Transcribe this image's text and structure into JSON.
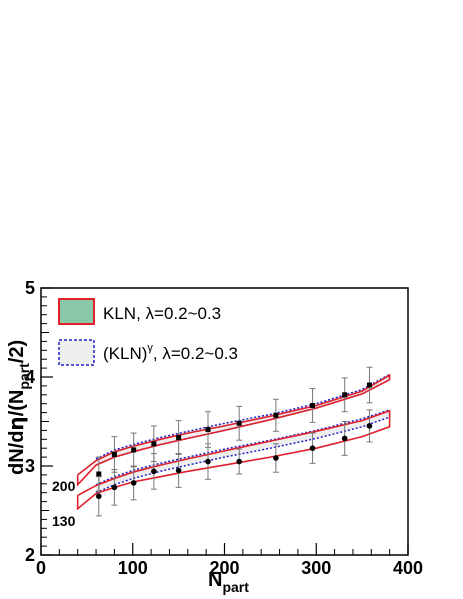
{
  "chart_data": {
    "type": "line",
    "xlabel": "N",
    "xlabel_sub": "part",
    "ylabel_parts": [
      "dN/d",
      "η",
      "/(N",
      "part",
      "/2)"
    ],
    "xlim": [
      0,
      400
    ],
    "ylim": [
      2,
      5
    ],
    "x_ticks": [
      "0",
      "100",
      "200",
      "300",
      "400"
    ],
    "y_ticks": [
      "2",
      "3",
      "4",
      "5"
    ],
    "grid": false,
    "legend_position": "top-left",
    "legend": [
      {
        "text": "KLN, λ=0.2~0.3",
        "style": "filled-band",
        "fill": "#88c8a8",
        "edge": "#e0202a"
      },
      {
        "text_main": "(KLN)",
        "text_sup": "γ",
        "text_tail": ", λ=0.2~0.3",
        "style": "dotted-band",
        "fill": "#eeeeee",
        "edge": "#2020cc"
      }
    ],
    "annotations": [
      {
        "text": "200",
        "x": 18,
        "y": 2.8
      },
      {
        "text": "130",
        "x": 18,
        "y": 2.28
      }
    ],
    "colors": {
      "kln_band_edge": "#e0202a",
      "kln_gamma_edge": "#2020cc",
      "kln_gamma_fill": "#eeeeee",
      "points": "#000000",
      "error_bars": "#777777"
    },
    "series": [
      {
        "name": "200",
        "points": [
          {
            "x": 63,
            "y": 2.91,
            "err": 0.19
          },
          {
            "x": 80,
            "y": 3.13,
            "err": 0.2
          },
          {
            "x": 101,
            "y": 3.18,
            "err": 0.19
          },
          {
            "x": 123,
            "y": 3.25,
            "err": 0.2
          },
          {
            "x": 150,
            "y": 3.32,
            "err": 0.19
          },
          {
            "x": 182,
            "y": 3.41,
            "err": 0.2
          },
          {
            "x": 216,
            "y": 3.48,
            "err": 0.19
          },
          {
            "x": 256,
            "y": 3.57,
            "err": 0.18
          },
          {
            "x": 296,
            "y": 3.68,
            "err": 0.19
          },
          {
            "x": 331,
            "y": 3.8,
            "err": 0.19
          },
          {
            "x": 358,
            "y": 3.91,
            "err": 0.2
          }
        ],
        "kln_band": {
          "x": [
            40,
            60,
            80,
            100,
            130,
            160,
            200,
            250,
            300,
            350,
            380
          ],
          "lower": [
            2.79,
            3.01,
            3.1,
            3.16,
            3.24,
            3.31,
            3.4,
            3.52,
            3.65,
            3.81,
            3.97
          ],
          "upper": [
            2.9,
            3.06,
            3.16,
            3.22,
            3.3,
            3.37,
            3.45,
            3.56,
            3.68,
            3.84,
            4.02
          ]
        },
        "kln_gamma_band": {
          "x": [
            60,
            80,
            100,
            130,
            160,
            200,
            250,
            300,
            350,
            380
          ],
          "lower": [
            3.01,
            3.1,
            3.16,
            3.24,
            3.31,
            3.4,
            3.52,
            3.65,
            3.81,
            3.97
          ],
          "upper": [
            3.08,
            3.18,
            3.24,
            3.32,
            3.39,
            3.48,
            3.58,
            3.7,
            3.86,
            4.03
          ]
        }
      },
      {
        "name": "130",
        "points": [
          {
            "x": 63,
            "y": 2.66,
            "err": 0.22
          },
          {
            "x": 80,
            "y": 2.76,
            "err": 0.2
          },
          {
            "x": 101,
            "y": 2.81,
            "err": 0.19
          },
          {
            "x": 123,
            "y": 2.94,
            "err": 0.2
          },
          {
            "x": 150,
            "y": 2.95,
            "err": 0.19
          },
          {
            "x": 182,
            "y": 3.05,
            "err": 0.2
          },
          {
            "x": 216,
            "y": 3.05,
            "err": 0.14
          },
          {
            "x": 256,
            "y": 3.09,
            "err": 0.16
          },
          {
            "x": 296,
            "y": 3.2,
            "err": 0.17
          },
          {
            "x": 331,
            "y": 3.31,
            "err": 0.19
          },
          {
            "x": 358,
            "y": 3.45,
            "err": 0.18
          }
        ],
        "kln_band": {
          "x": [
            40,
            60,
            80,
            100,
            130,
            160,
            200,
            250,
            300,
            350,
            380
          ],
          "lower": [
            2.52,
            2.69,
            2.76,
            2.82,
            2.88,
            2.94,
            3.01,
            3.1,
            3.2,
            3.33,
            3.44
          ],
          "upper": [
            2.67,
            2.78,
            2.86,
            2.93,
            3.01,
            3.08,
            3.17,
            3.28,
            3.39,
            3.51,
            3.62
          ]
        },
        "kln_gamma_band": {
          "x": [
            60,
            80,
            100,
            130,
            160,
            200,
            250,
            300,
            350,
            380
          ],
          "lower": [
            2.7,
            2.79,
            2.86,
            2.94,
            3.01,
            3.1,
            3.2,
            3.31,
            3.44,
            3.55
          ],
          "upper": [
            2.79,
            2.88,
            2.95,
            3.03,
            3.1,
            3.19,
            3.29,
            3.4,
            3.53,
            3.63
          ]
        }
      }
    ]
  }
}
